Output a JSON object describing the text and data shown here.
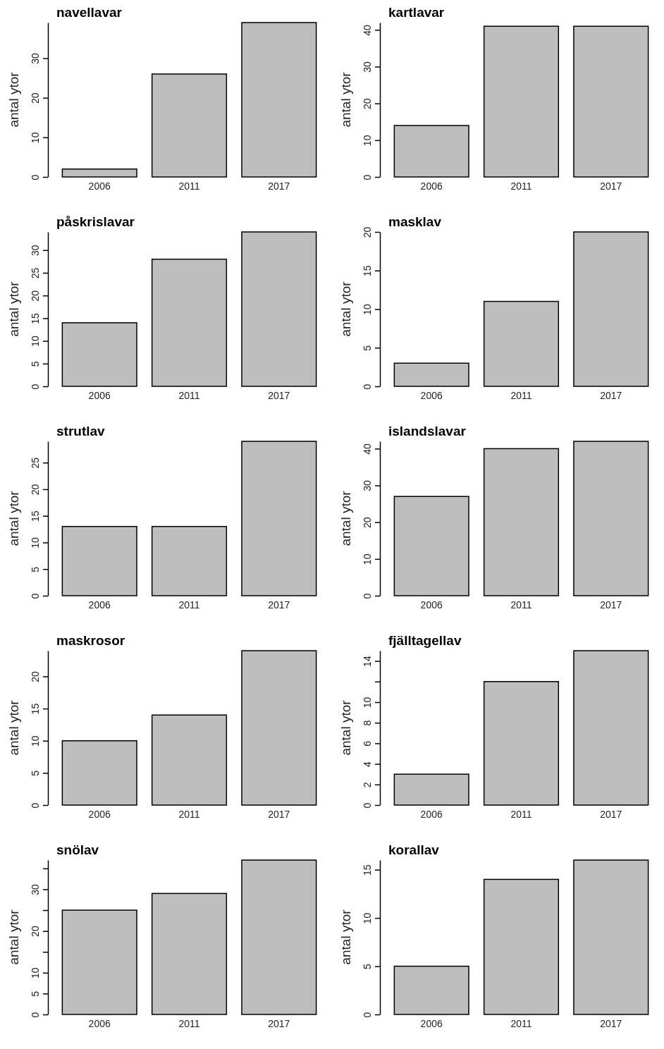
{
  "chart_data": [
    {
      "type": "bar",
      "title": "navellavar",
      "ylabel": "antal ytor",
      "categories": [
        "2006",
        "2011",
        "2017"
      ],
      "values": [
        2,
        26,
        39
      ],
      "color": "#bebebe",
      "ylim": [
        0,
        39
      ],
      "yticks": [
        0,
        10,
        20,
        30
      ]
    },
    {
      "type": "bar",
      "title": "kartlavar",
      "ylabel": "antal ytor",
      "categories": [
        "2006",
        "2011",
        "2017"
      ],
      "values": [
        14,
        41,
        41
      ],
      "color": "#bebebe",
      "ylim": [
        0,
        42
      ],
      "yticks": [
        0,
        10,
        20,
        30,
        40
      ]
    },
    {
      "type": "bar",
      "title": "påskrislavar",
      "ylabel": "antal ytor",
      "categories": [
        "2006",
        "2011",
        "2017"
      ],
      "values": [
        14,
        28,
        34
      ],
      "color": "#bebebe",
      "ylim": [
        0,
        34
      ],
      "yticks": [
        0,
        5,
        10,
        15,
        20,
        25,
        30
      ]
    },
    {
      "type": "bar",
      "title": "masklav",
      "ylabel": "antal ytor",
      "categories": [
        "2006",
        "2011",
        "2017"
      ],
      "values": [
        3,
        11,
        20
      ],
      "color": "#bebebe",
      "ylim": [
        0,
        20
      ],
      "yticks": [
        0,
        5,
        10,
        15,
        20
      ]
    },
    {
      "type": "bar",
      "title": "strutlav",
      "ylabel": "antal ytor",
      "categories": [
        "2006",
        "2011",
        "2017"
      ],
      "values": [
        13,
        13,
        29
      ],
      "color": "#bebebe",
      "ylim": [
        0,
        29
      ],
      "yticks": [
        0,
        5,
        10,
        15,
        20,
        25
      ]
    },
    {
      "type": "bar",
      "title": "islandslavar",
      "ylabel": "antal ytor",
      "categories": [
        "2006",
        "2011",
        "2017"
      ],
      "values": [
        27,
        40,
        42
      ],
      "color": "#bebebe",
      "ylim": [
        0,
        42
      ],
      "yticks": [
        0,
        10,
        20,
        30,
        40
      ]
    },
    {
      "type": "bar",
      "title": "maskrosor",
      "ylabel": "antal ytor",
      "categories": [
        "2006",
        "2011",
        "2017"
      ],
      "values": [
        10,
        14,
        24
      ],
      "color": "#bebebe",
      "ylim": [
        0,
        24
      ],
      "yticks": [
        0,
        5,
        10,
        15,
        20
      ]
    },
    {
      "type": "bar",
      "title": "fjälltagellav",
      "ylabel": "antal ytor",
      "categories": [
        "2006",
        "2011",
        "2017"
      ],
      "values": [
        3,
        12,
        15
      ],
      "color": "#bebebe",
      "ylim": [
        0,
        15
      ],
      "yticks": [
        0,
        2,
        4,
        6,
        8,
        10,
        {
          "value": 12,
          "label": null
        },
        14
      ]
    },
    {
      "type": "bar",
      "title": "snölav",
      "ylabel": "antal ytor",
      "categories": [
        "2006",
        "2011",
        "2017"
      ],
      "values": [
        25,
        29,
        37
      ],
      "color": "#bebebe",
      "ylim": [
        0,
        37
      ],
      "yticks": [
        0,
        5,
        10,
        {
          "value": 15,
          "label": null
        },
        20,
        {
          "value": 25,
          "label": null
        },
        30,
        {
          "value": 35,
          "label": null
        }
      ]
    },
    {
      "type": "bar",
      "title": "korallav",
      "ylabel": "antal ytor",
      "categories": [
        "2006",
        "2011",
        "2017"
      ],
      "values": [
        5,
        14,
        16
      ],
      "color": "#bebebe",
      "ylim": [
        0,
        16
      ],
      "yticks": [
        0,
        5,
        10,
        15
      ]
    }
  ]
}
